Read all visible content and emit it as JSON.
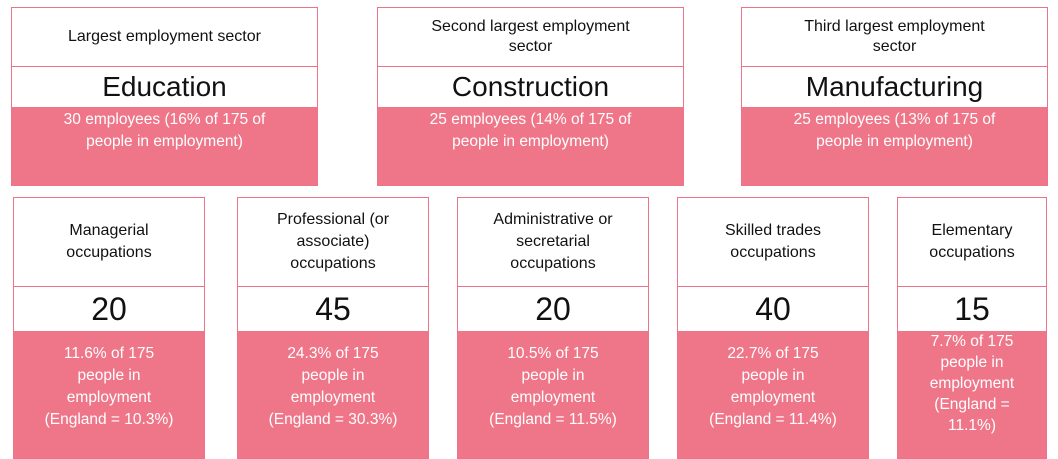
{
  "sectors": [
    {
      "label": [
        "Largest employment sector"
      ],
      "name": "Education",
      "detail": [
        "30 employees (16% of 175 of",
        "people in employment)"
      ]
    },
    {
      "label": [
        "Second largest employment",
        "sector"
      ],
      "name": "Construction",
      "detail": [
        "25 employees (14% of 175 of",
        "people in employment)"
      ]
    },
    {
      "label": [
        "Third largest employment",
        "sector"
      ],
      "name": "Manufacturing",
      "detail": [
        "25 employees (13% of 175 of",
        "people in employment)"
      ]
    }
  ],
  "occupations": [
    {
      "label": [
        "Managerial",
        "occupations"
      ],
      "value": "20",
      "detail": [
        "11.6% of 175",
        "people in",
        "employment",
        "(England = 10.3%)"
      ]
    },
    {
      "label": [
        "Professional (or",
        "associate)",
        "occupations"
      ],
      "value": "45",
      "detail": [
        "24.3% of 175",
        "people in",
        "employment",
        "(England = 30.3%)"
      ]
    },
    {
      "label": [
        "Administrative or",
        "secretarial",
        "occupations"
      ],
      "value": "20",
      "detail": [
        "10.5% of 175",
        "people in",
        "employment",
        "(England = 11.5%)"
      ]
    },
    {
      "label": [
        "Skilled trades",
        "occupations"
      ],
      "value": "40",
      "detail": [
        "22.7% of 175",
        "people in",
        "employment",
        "(England = 11.4%)"
      ]
    },
    {
      "label": [
        "Elementary",
        "occupations"
      ],
      "value": "15",
      "detail": [
        "7.7% of 175",
        "people in",
        "employment",
        "(England =",
        "11.1%)"
      ]
    }
  ]
}
